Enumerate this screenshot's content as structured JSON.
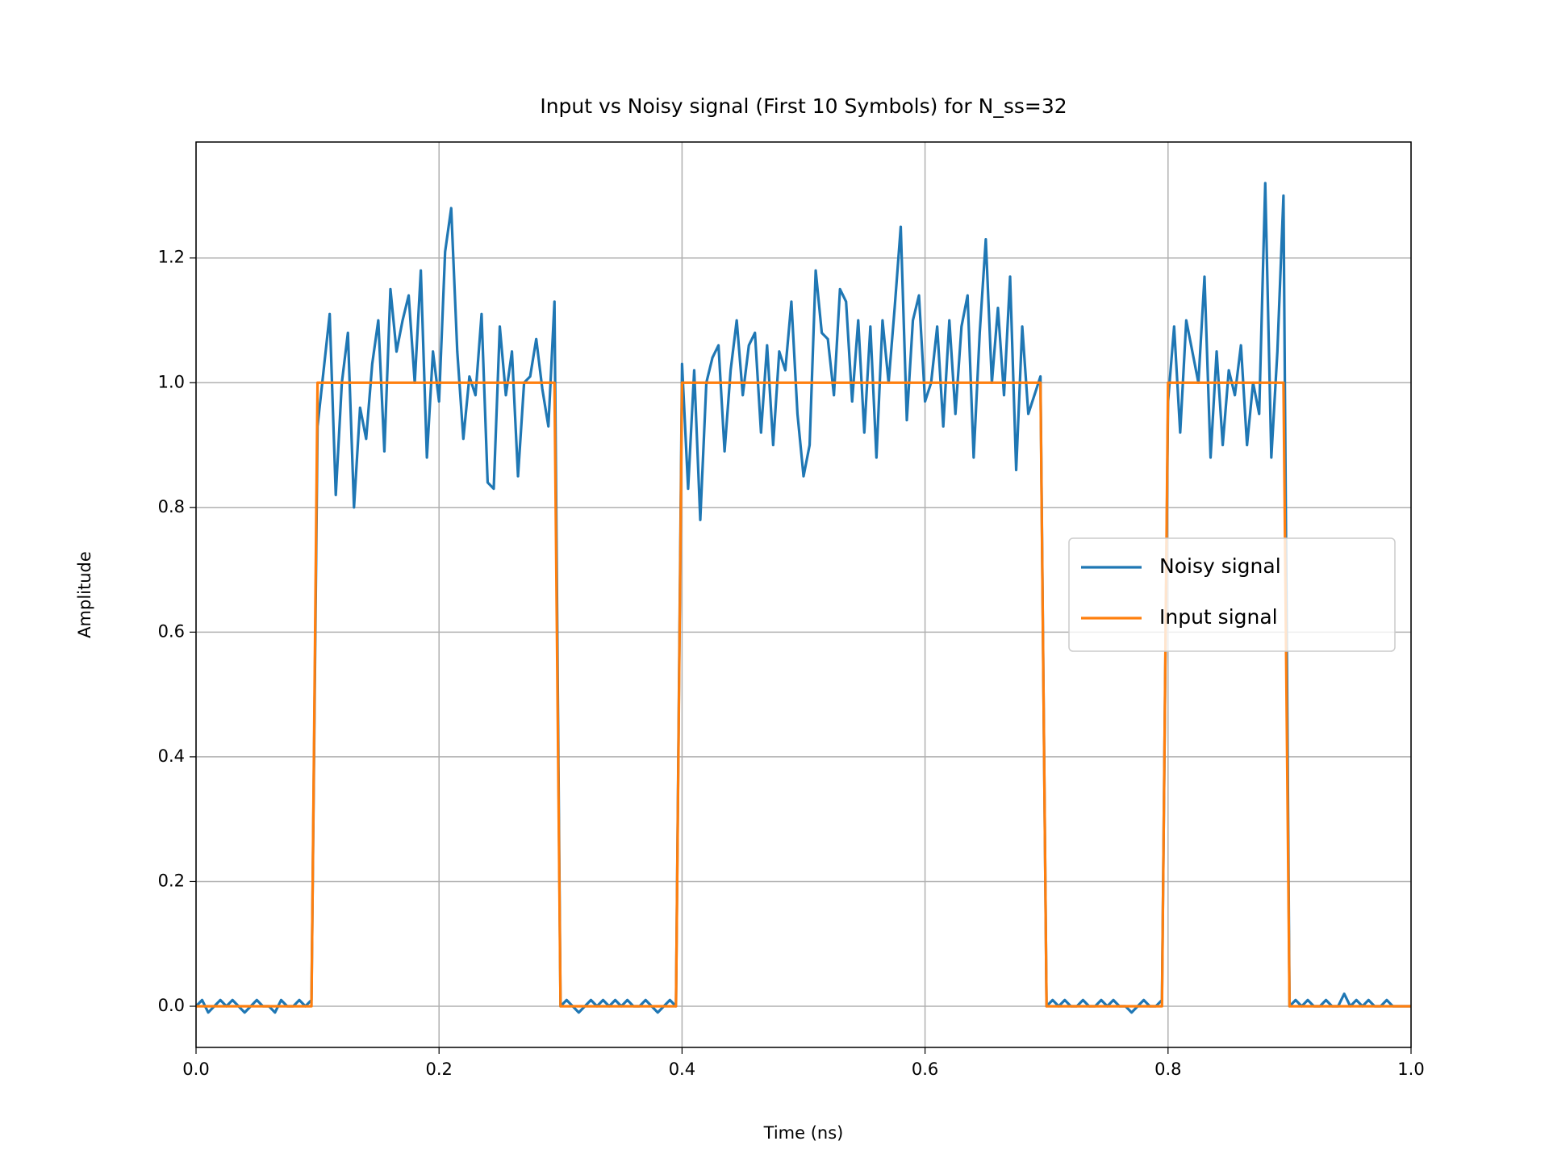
{
  "chart_data": {
    "type": "line",
    "title": "Input vs Noisy signal (First 10 Symbols) for N_ss=32",
    "x_label": "Time (ns)",
    "y_label": "Amplitude",
    "xlim": [
      0,
      1
    ],
    "ylim": [
      -0.066,
      1.386
    ],
    "xticks": [
      {
        "value": 0,
        "label": "0.0"
      },
      0.2,
      0.4,
      0.6,
      0.8,
      {
        "value": 1,
        "label": "1.0"
      }
    ],
    "yticks": [
      {
        "value": 0,
        "label": "0.0"
      },
      0.2,
      0.4,
      0.6,
      0.8,
      {
        "value": 1,
        "label": "1.0"
      },
      1.2
    ],
    "grid": true,
    "legend": "center right",
    "x": [
      0,
      0.005,
      0.01,
      0.015,
      0.02,
      0.025,
      0.03,
      0.035,
      0.04,
      0.045,
      0.05,
      0.055,
      0.06,
      0.065,
      0.07,
      0.075,
      0.08,
      0.085,
      0.09,
      0.095,
      0.1,
      0.105,
      0.11,
      0.115,
      0.12,
      0.125,
      0.13,
      0.135,
      0.14,
      0.145,
      0.15,
      0.155,
      0.16,
      0.165,
      0.17,
      0.175,
      0.18,
      0.185,
      0.19,
      0.195,
      0.2,
      0.205,
      0.21,
      0.215,
      0.22,
      0.225,
      0.23,
      0.235,
      0.24,
      0.245,
      0.25,
      0.255,
      0.26,
      0.265,
      0.27,
      0.275,
      0.28,
      0.285,
      0.29,
      0.295,
      0.3,
      0.305,
      0.31,
      0.315,
      0.32,
      0.325,
      0.33,
      0.335,
      0.34,
      0.345,
      0.35,
      0.355,
      0.36,
      0.365,
      0.37,
      0.375,
      0.38,
      0.385,
      0.39,
      0.395,
      0.4,
      0.405,
      0.41,
      0.415,
      0.42,
      0.425,
      0.43,
      0.435,
      0.44,
      0.445,
      0.45,
      0.455,
      0.46,
      0.465,
      0.47,
      0.475,
      0.48,
      0.485,
      0.49,
      0.495,
      0.5,
      0.505,
      0.51,
      0.515,
      0.52,
      0.525,
      0.53,
      0.535,
      0.54,
      0.545,
      0.55,
      0.555,
      0.56,
      0.565,
      0.57,
      0.575,
      0.58,
      0.585,
      0.59,
      0.595,
      0.6,
      0.605,
      0.61,
      0.615,
      0.62,
      0.625,
      0.63,
      0.635,
      0.64,
      0.645,
      0.65,
      0.655,
      0.66,
      0.665,
      0.67,
      0.675,
      0.68,
      0.685,
      0.69,
      0.695,
      0.7,
      0.705,
      0.71,
      0.715,
      0.72,
      0.725,
      0.73,
      0.735,
      0.74,
      0.745,
      0.75,
      0.755,
      0.76,
      0.765,
      0.77,
      0.775,
      0.78,
      0.785,
      0.79,
      0.795,
      0.8,
      0.805,
      0.81,
      0.815,
      0.82,
      0.825,
      0.83,
      0.835,
      0.84,
      0.845,
      0.85,
      0.855,
      0.86,
      0.865,
      0.87,
      0.875,
      0.88,
      0.885,
      0.89,
      0.895,
      0.9,
      0.905,
      0.91,
      0.915,
      0.92,
      0.925,
      0.93,
      0.935,
      0.94,
      0.945,
      0.95,
      0.955,
      0.96,
      0.965,
      0.97,
      0.975,
      0.98,
      0.985,
      0.99,
      0.995,
      1
    ],
    "series": [
      {
        "name": "Noisy signal",
        "color": "#1f77b4",
        "values": [
          0.0,
          0.01,
          -0.01,
          0.0,
          0.01,
          0.0,
          0.01,
          0.0,
          -0.01,
          0.0,
          0.01,
          0.0,
          0.0,
          -0.01,
          0.01,
          0.0,
          0.0,
          0.01,
          0.0,
          0.01,
          0.93,
          1.02,
          1.11,
          0.82,
          1.0,
          1.08,
          0.8,
          0.96,
          0.91,
          1.03,
          1.1,
          0.89,
          1.15,
          1.05,
          1.1,
          1.14,
          1.0,
          1.18,
          0.88,
          1.05,
          0.97,
          1.21,
          1.28,
          1.05,
          0.91,
          1.01,
          0.98,
          1.11,
          0.84,
          0.83,
          1.09,
          0.98,
          1.05,
          0.85,
          1.0,
          1.01,
          1.07,
          0.99,
          0.93,
          1.13,
          0.0,
          0.01,
          0.0,
          -0.01,
          0.0,
          0.01,
          0.0,
          0.01,
          0.0,
          0.01,
          0.0,
          0.01,
          0.0,
          0.0,
          0.01,
          0.0,
          -0.01,
          0.0,
          0.01,
          0.0,
          1.03,
          0.83,
          1.02,
          0.78,
          1.0,
          1.04,
          1.06,
          0.89,
          1.02,
          1.1,
          0.98,
          1.06,
          1.08,
          0.92,
          1.06,
          0.9,
          1.05,
          1.02,
          1.13,
          0.95,
          0.85,
          0.9,
          1.18,
          1.08,
          1.07,
          0.98,
          1.15,
          1.13,
          0.97,
          1.1,
          0.92,
          1.09,
          0.88,
          1.1,
          1.0,
          1.12,
          1.25,
          0.94,
          1.1,
          1.14,
          0.97,
          1.0,
          1.09,
          0.93,
          1.1,
          0.95,
          1.09,
          1.14,
          0.88,
          1.08,
          1.23,
          1.0,
          1.12,
          0.98,
          1.17,
          0.86,
          1.09,
          0.95,
          0.98,
          1.01,
          0.0,
          0.01,
          0.0,
          0.01,
          0.0,
          0.0,
          0.01,
          0.0,
          0.0,
          0.01,
          0.0,
          0.01,
          0.0,
          0.0,
          -0.01,
          0.0,
          0.01,
          0.0,
          0.0,
          0.01,
          0.97,
          1.09,
          0.92,
          1.1,
          1.05,
          1.0,
          1.17,
          0.88,
          1.05,
          0.9,
          1.02,
          0.98,
          1.06,
          0.9,
          1.0,
          0.95,
          1.32,
          0.88,
          1.05,
          1.3,
          0.0,
          0.01,
          0.0,
          0.01,
          0.0,
          0.0,
          0.01,
          0.0,
          0.0,
          0.02,
          0.0,
          0.01,
          0.0,
          0.01,
          0.0,
          0.0,
          0.01,
          0.0,
          0.0,
          0.0,
          0.0
        ]
      },
      {
        "name": "Input signal",
        "color": "#ff7f0e",
        "values": [
          0,
          0,
          0,
          0,
          0,
          0,
          0,
          0,
          0,
          0,
          0,
          0,
          0,
          0,
          0,
          0,
          0,
          0,
          0,
          0,
          1,
          1,
          1,
          1,
          1,
          1,
          1,
          1,
          1,
          1,
          1,
          1,
          1,
          1,
          1,
          1,
          1,
          1,
          1,
          1,
          1,
          1,
          1,
          1,
          1,
          1,
          1,
          1,
          1,
          1,
          1,
          1,
          1,
          1,
          1,
          1,
          1,
          1,
          1,
          1,
          0,
          0,
          0,
          0,
          0,
          0,
          0,
          0,
          0,
          0,
          0,
          0,
          0,
          0,
          0,
          0,
          0,
          0,
          0,
          0,
          1,
          1,
          1,
          1,
          1,
          1,
          1,
          1,
          1,
          1,
          1,
          1,
          1,
          1,
          1,
          1,
          1,
          1,
          1,
          1,
          1,
          1,
          1,
          1,
          1,
          1,
          1,
          1,
          1,
          1,
          1,
          1,
          1,
          1,
          1,
          1,
          1,
          1,
          1,
          1,
          1,
          1,
          1,
          1,
          1,
          1,
          1,
          1,
          1,
          1,
          1,
          1,
          1,
          1,
          1,
          1,
          1,
          1,
          1,
          1,
          0,
          0,
          0,
          0,
          0,
          0,
          0,
          0,
          0,
          0,
          0,
          0,
          0,
          0,
          0,
          0,
          0,
          0,
          0,
          0,
          1,
          1,
          1,
          1,
          1,
          1,
          1,
          1,
          1,
          1,
          1,
          1,
          1,
          1,
          1,
          1,
          1,
          1,
          1,
          1,
          0,
          0,
          0,
          0,
          0,
          0,
          0,
          0,
          0,
          0,
          0,
          0,
          0,
          0,
          0,
          0,
          0,
          0,
          0,
          0,
          0
        ]
      }
    ]
  }
}
